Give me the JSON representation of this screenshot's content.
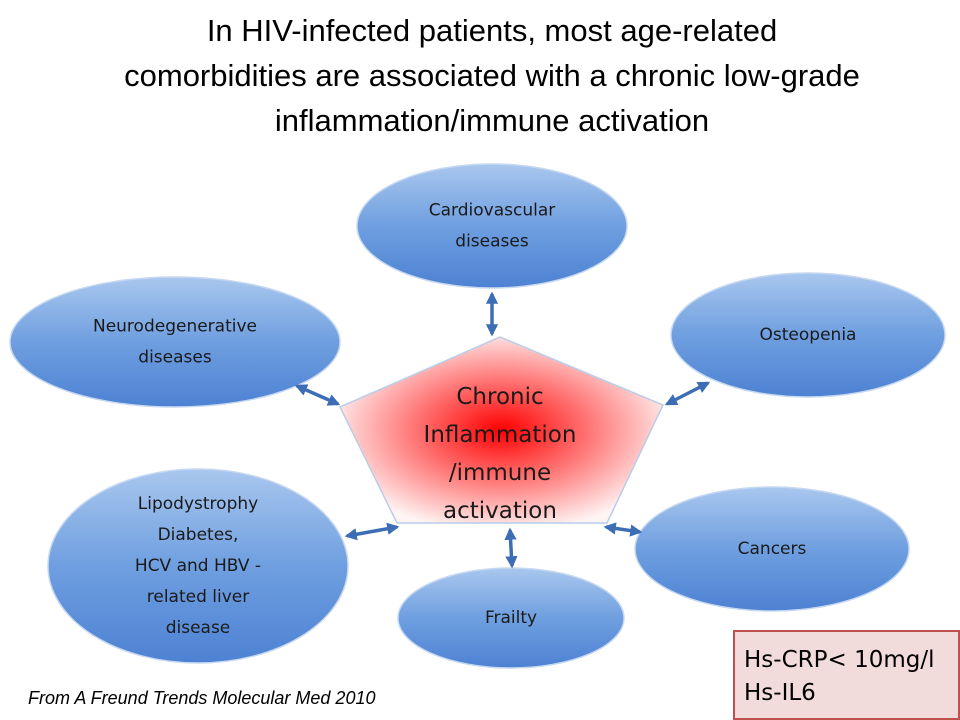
{
  "title": {
    "lines": [
      "In HIV-infected patients, most age-related",
      "comorbidities are associated with a chronic low-grade",
      "inflammation/immune activation"
    ]
  },
  "center": {
    "lines": [
      "Chronic",
      "Inflammation",
      "/immune",
      "activation"
    ]
  },
  "nodes": [
    {
      "lines": [
        "Cardiovascular",
        "diseases"
      ]
    },
    {
      "lines": [
        "Neurodegenerative",
        "diseases"
      ]
    },
    {
      "lines": [
        "Osteopenia"
      ]
    },
    {
      "lines": [
        "Lipodystrophy",
        "Diabetes,",
        "HCV and HBV -",
        "related liver",
        "disease"
      ]
    },
    {
      "lines": [
        "Cancers"
      ]
    },
    {
      "lines": [
        "Frailty"
      ]
    }
  ],
  "note": {
    "lines": [
      "Hs-CRP< 10mg/l",
      "Hs-IL6"
    ]
  },
  "source": "From A Freund Trends Molecular Med 2010"
}
